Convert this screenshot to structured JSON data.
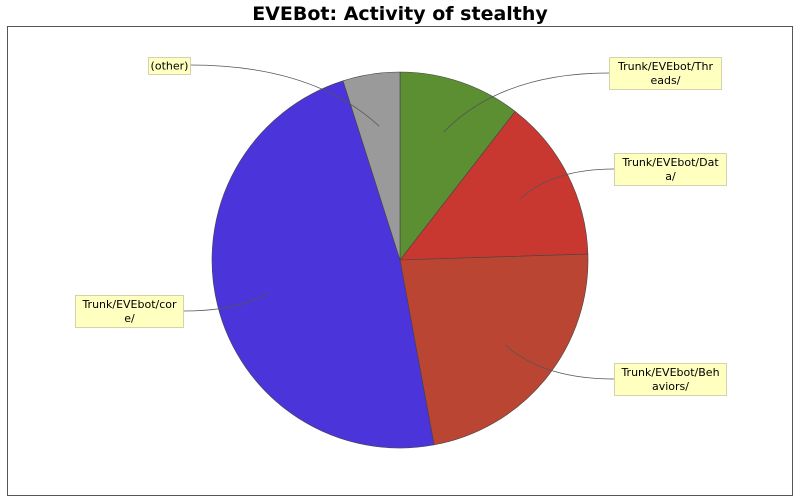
{
  "chart_data": {
    "type": "pie",
    "title": "EVEBot: Activity of stealthy",
    "slices": [
      {
        "label": "Trunk/EVEbot/Threads/",
        "value": 10.5,
        "color": "#5b8f32",
        "label_lines": [
          "Trunk/EVEbot/Thr",
          "eads/"
        ]
      },
      {
        "label": "Trunk/EVEbot/Data/",
        "value": 14.0,
        "color": "#c93830",
        "label_lines": [
          "Trunk/EVEbot/Dat",
          "a/"
        ]
      },
      {
        "label": "Trunk/EVEbot/Behaviors/",
        "value": 22.6,
        "color": "#bb4533",
        "label_lines": [
          "Trunk/EVEbot/Beh",
          "aviors/"
        ]
      },
      {
        "label": "Trunk/EVEbot/core/",
        "value": 48.0,
        "color": "#4b34d9",
        "label_lines": [
          "Trunk/EVEbot/cor",
          "e/"
        ]
      },
      {
        "label": "(other)",
        "value": 4.9,
        "color": "#9a9a9a",
        "label_lines": [
          "(other)"
        ]
      }
    ],
    "start_angle": "12 o'clock",
    "direction": "clockwise",
    "legend": "none"
  }
}
